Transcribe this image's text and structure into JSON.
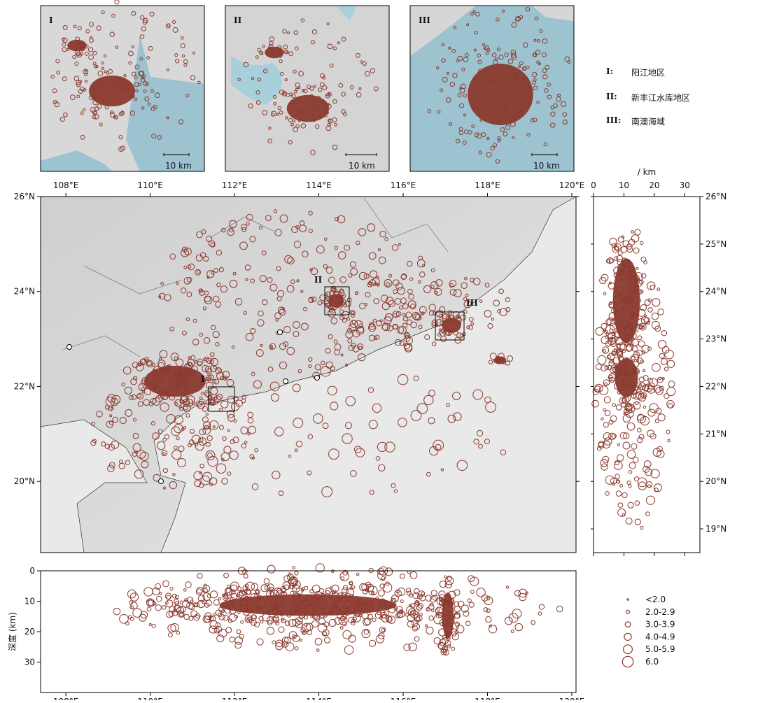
{
  "insets": [
    {
      "label": "I",
      "scale": "10 km"
    },
    {
      "label": "II",
      "scale": "10 km"
    },
    {
      "label": "III",
      "scale": "10 km"
    }
  ],
  "region_legend": [
    {
      "key": "I:",
      "name": "阳江地区"
    },
    {
      "key": "II:",
      "name": "新丰江水库地区"
    },
    {
      "key": "III:",
      "name": "南澳海域"
    }
  ],
  "main_map": {
    "xlim": [
      107.4,
      120.1
    ],
    "ylim": [
      18.5,
      26
    ],
    "xticks": [
      {
        "value": 108,
        "label": "108°E"
      },
      {
        "value": 110,
        "label": "110°E"
      },
      {
        "value": 112,
        "label": "112°E"
      },
      {
        "value": 114,
        "label": "114°E"
      },
      {
        "value": 116,
        "label": "116°E"
      },
      {
        "value": 118,
        "label": "118°E"
      },
      {
        "value": 120,
        "label": "120°E"
      }
    ],
    "yticks": [
      {
        "value": 20,
        "label": "20°N"
      },
      {
        "value": 22,
        "label": "22°N"
      },
      {
        "value": 24,
        "label": "24°N"
      },
      {
        "value": 26,
        "label": "26°N"
      }
    ],
    "box_labels": [
      "I",
      "II",
      "III"
    ]
  },
  "latitude_depth": {
    "axis_title": "/ km",
    "xlim": [
      0,
      35
    ],
    "xticks": [
      0,
      10,
      20,
      30
    ],
    "ylim": [
      18.5,
      26
    ],
    "yticks": [
      {
        "value": 19,
        "label": "19°N"
      },
      {
        "value": 20,
        "label": "20°N"
      },
      {
        "value": 21,
        "label": "21°N"
      },
      {
        "value": 22,
        "label": "22°N"
      },
      {
        "value": 23,
        "label": "23°N"
      },
      {
        "value": 24,
        "label": "24°N"
      },
      {
        "value": 25,
        "label": "25°N"
      },
      {
        "value": 26,
        "label": "26°N"
      }
    ]
  },
  "longitude_depth": {
    "axis_title": "深度 (km)",
    "ylim": [
      0,
      40
    ],
    "yticks": [
      0,
      10,
      20,
      30
    ]
  },
  "magnitude_legend": [
    "<2.0",
    "2.0-2.9",
    "3.0-3.9",
    "4.0-4.9",
    "5.0-5.9",
    "6.0"
  ]
}
